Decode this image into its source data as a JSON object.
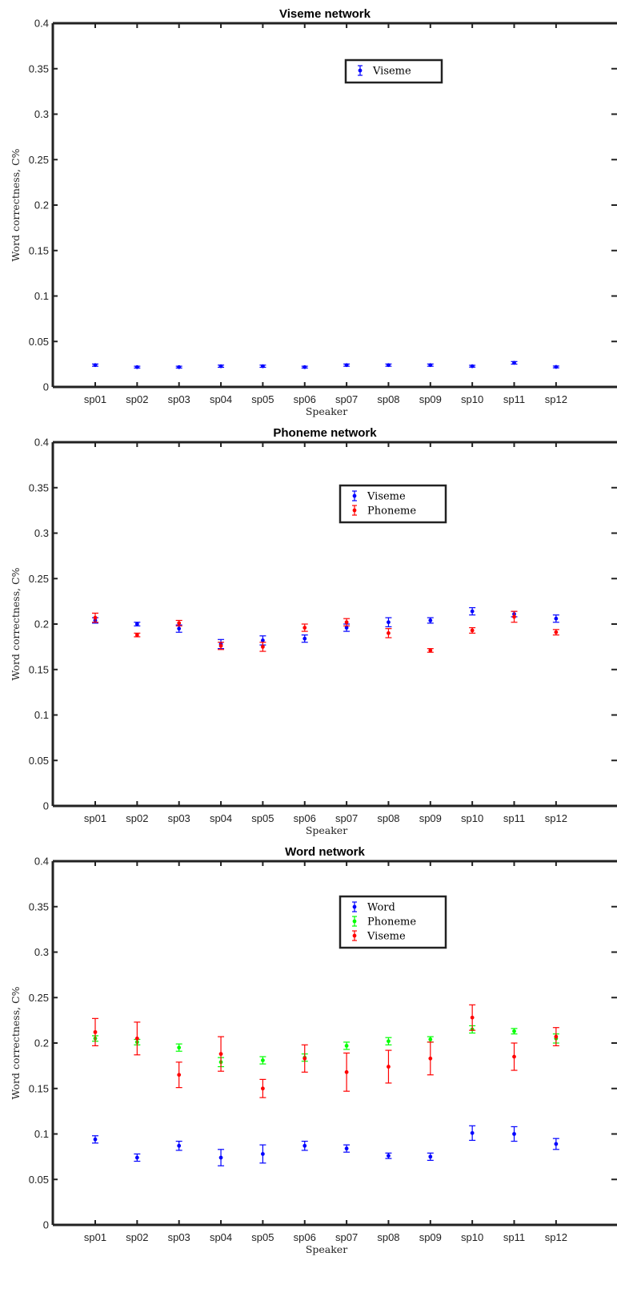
{
  "chart_data": [
    {
      "type": "scatter",
      "title": "Viseme network",
      "xlabel": "Speaker",
      "ylabel": "Word correctness, C%",
      "ylim": [
        0,
        0.4
      ],
      "yticks": [
        0,
        0.05,
        0.1,
        0.15,
        0.2,
        0.25,
        0.3,
        0.35,
        0.4
      ],
      "ytick_labels": [
        "0",
        "0.05",
        "0.1",
        "0.15",
        "0.2",
        "0.25",
        "0.3",
        "0.35",
        "0.4"
      ],
      "categories": [
        "sp01",
        "sp02",
        "sp03",
        "sp04",
        "sp05",
        "sp06",
        "sp07",
        "sp08",
        "sp09",
        "sp10",
        "sp11",
        "sp12"
      ],
      "legend_position": "top-right",
      "series": [
        {
          "name": "Viseme",
          "color": "#0000ff",
          "values": [
            0.024,
            0.0218,
            0.0218,
            0.0228,
            0.0228,
            0.0218,
            0.024,
            0.024,
            0.024,
            0.0228,
            0.0265,
            0.022
          ],
          "errors": [
            0.0012,
            0.001,
            0.001,
            0.0012,
            0.0012,
            0.001,
            0.0012,
            0.0012,
            0.0012,
            0.001,
            0.0014,
            0.001
          ]
        }
      ]
    },
    {
      "type": "scatter",
      "title": "Phoneme network",
      "xlabel": "Speaker",
      "ylabel": "Word correctness, C%",
      "ylim": [
        0,
        0.4
      ],
      "yticks": [
        0,
        0.05,
        0.1,
        0.15,
        0.2,
        0.25,
        0.3,
        0.35,
        0.4
      ],
      "ytick_labels": [
        "0",
        "0.05",
        "0.1",
        "0.15",
        "0.2",
        "0.25",
        "0.3",
        "0.35",
        "0.4"
      ],
      "categories": [
        "sp01",
        "sp02",
        "sp03",
        "sp04",
        "sp05",
        "sp06",
        "sp07",
        "sp08",
        "sp09",
        "sp10",
        "sp11",
        "sp12"
      ],
      "legend_position": "top-right",
      "series": [
        {
          "name": "Viseme",
          "color": "#0000ff",
          "values": [
            0.204,
            0.2,
            0.195,
            0.178,
            0.182,
            0.184,
            0.196,
            0.202,
            0.204,
            0.214,
            0.211,
            0.206
          ],
          "errors": [
            0.003,
            0.002,
            0.004,
            0.005,
            0.005,
            0.004,
            0.004,
            0.005,
            0.003,
            0.004,
            0.003,
            0.004
          ]
        },
        {
          "name": "Phoneme",
          "color": "#ff0000",
          "values": [
            0.207,
            0.188,
            0.201,
            0.176,
            0.175,
            0.196,
            0.202,
            0.19,
            0.171,
            0.193,
            0.208,
            0.191
          ],
          "errors": [
            0.005,
            0.002,
            0.003,
            0.004,
            0.005,
            0.004,
            0.004,
            0.005,
            0.002,
            0.003,
            0.006,
            0.003
          ]
        }
      ]
    },
    {
      "type": "scatter",
      "title": "Word network",
      "xlabel": "Speaker",
      "ylabel": "Word correctness, C%",
      "ylim": [
        0,
        0.4
      ],
      "yticks": [
        0,
        0.05,
        0.1,
        0.15,
        0.2,
        0.25,
        0.3,
        0.35,
        0.4
      ],
      "ytick_labels": [
        "0",
        "0.05",
        "0.1",
        "0.15",
        "0.2",
        "0.25",
        "0.3",
        "0.35",
        "0.4"
      ],
      "categories": [
        "sp01",
        "sp02",
        "sp03",
        "sp04",
        "sp05",
        "sp06",
        "sp07",
        "sp08",
        "sp09",
        "sp10",
        "sp11",
        "sp12"
      ],
      "legend_position": "top-right",
      "series": [
        {
          "name": "Word",
          "color": "#0000ff",
          "values": [
            0.094,
            0.074,
            0.087,
            0.074,
            0.078,
            0.087,
            0.084,
            0.076,
            0.075,
            0.101,
            0.1,
            0.089
          ],
          "errors": [
            0.004,
            0.004,
            0.005,
            0.009,
            0.01,
            0.005,
            0.004,
            0.003,
            0.004,
            0.008,
            0.008,
            0.006
          ]
        },
        {
          "name": "Phoneme",
          "color": "#00ff00",
          "values": [
            0.205,
            0.201,
            0.195,
            0.179,
            0.181,
            0.184,
            0.197,
            0.202,
            0.204,
            0.215,
            0.213,
            0.205
          ],
          "errors": [
            0.003,
            0.003,
            0.004,
            0.005,
            0.004,
            0.004,
            0.004,
            0.004,
            0.003,
            0.004,
            0.003,
            0.005
          ]
        },
        {
          "name": "Viseme",
          "color": "#ff0000",
          "values": [
            0.212,
            0.205,
            0.165,
            0.188,
            0.15,
            0.183,
            0.168,
            0.174,
            0.183,
            0.228,
            0.185,
            0.207
          ],
          "errors": [
            0.015,
            0.018,
            0.014,
            0.019,
            0.01,
            0.015,
            0.021,
            0.018,
            0.018,
            0.014,
            0.015,
            0.01
          ]
        }
      ]
    }
  ]
}
